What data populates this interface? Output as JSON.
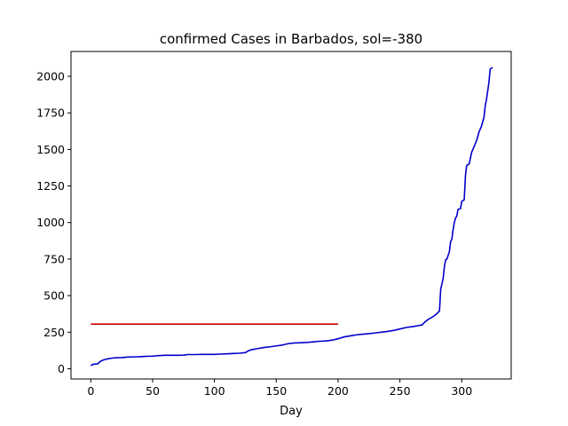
{
  "chart_data": {
    "type": "line",
    "title": "confirmed Cases in Barbados, sol=-380",
    "xlabel": "Day",
    "ylabel": "",
    "xlim": [
      -16,
      340
    ],
    "ylim": [
      -70,
      2170
    ],
    "x_ticks": [
      0,
      50,
      100,
      150,
      200,
      250,
      300
    ],
    "y_ticks": [
      0,
      250,
      500,
      750,
      1000,
      1250,
      1500,
      1750,
      2000
    ],
    "grid": false,
    "series": [
      {
        "color": "#0000cc",
        "points": [
          [
            0,
            22
          ],
          [
            2,
            30
          ],
          [
            4,
            33
          ],
          [
            6,
            34
          ],
          [
            7,
            46
          ],
          [
            9,
            56
          ],
          [
            11,
            62
          ],
          [
            13,
            66
          ],
          [
            15,
            70
          ],
          [
            17,
            72
          ],
          [
            20,
            75
          ],
          [
            25,
            76
          ],
          [
            30,
            80
          ],
          [
            35,
            81
          ],
          [
            40,
            82
          ],
          [
            45,
            85
          ],
          [
            50,
            86
          ],
          [
            55,
            90
          ],
          [
            60,
            92
          ],
          [
            65,
            92
          ],
          [
            70,
            92
          ],
          [
            75,
            93
          ],
          [
            78,
            97
          ],
          [
            85,
            97
          ],
          [
            90,
            98
          ],
          [
            95,
            98
          ],
          [
            100,
            98
          ],
          [
            105,
            100
          ],
          [
            110,
            102
          ],
          [
            115,
            104
          ],
          [
            120,
            106
          ],
          [
            125,
            110
          ],
          [
            128,
            125
          ],
          [
            130,
            130
          ],
          [
            135,
            138
          ],
          [
            140,
            145
          ],
          [
            145,
            150
          ],
          [
            150,
            156
          ],
          [
            155,
            162
          ],
          [
            160,
            172
          ],
          [
            165,
            176
          ],
          [
            170,
            178
          ],
          [
            175,
            180
          ],
          [
            180,
            184
          ],
          [
            185,
            188
          ],
          [
            190,
            190
          ],
          [
            195,
            195
          ],
          [
            200,
            205
          ],
          [
            205,
            218
          ],
          [
            210,
            225
          ],
          [
            215,
            232
          ],
          [
            220,
            236
          ],
          [
            225,
            240
          ],
          [
            230,
            245
          ],
          [
            235,
            250
          ],
          [
            240,
            255
          ],
          [
            245,
            262
          ],
          [
            250,
            272
          ],
          [
            255,
            282
          ],
          [
            260,
            288
          ],
          [
            265,
            295
          ],
          [
            268,
            300
          ],
          [
            270,
            318
          ],
          [
            273,
            338
          ],
          [
            276,
            352
          ],
          [
            279,
            370
          ],
          [
            282,
            395
          ],
          [
            283,
            545
          ],
          [
            284,
            580
          ],
          [
            285,
            620
          ],
          [
            286,
            700
          ],
          [
            287,
            745
          ],
          [
            288,
            750
          ],
          [
            290,
            800
          ],
          [
            291,
            870
          ],
          [
            292,
            885
          ],
          [
            293,
            950
          ],
          [
            294,
            1000
          ],
          [
            295,
            1030
          ],
          [
            296,
            1045
          ],
          [
            297,
            1090
          ],
          [
            299,
            1095
          ],
          [
            300,
            1145
          ],
          [
            302,
            1155
          ],
          [
            303,
            1320
          ],
          [
            304,
            1390
          ],
          [
            306,
            1400
          ],
          [
            308,
            1480
          ],
          [
            310,
            1520
          ],
          [
            312,
            1560
          ],
          [
            314,
            1620
          ],
          [
            316,
            1660
          ],
          [
            318,
            1720
          ],
          [
            319,
            1800
          ],
          [
            320,
            1840
          ],
          [
            321,
            1900
          ],
          [
            322,
            1960
          ],
          [
            323,
            2050
          ],
          [
            325,
            2060
          ]
        ]
      },
      {
        "color": "#cc0000",
        "points": [
          [
            0,
            305
          ],
          [
            200,
            305
          ]
        ]
      }
    ]
  }
}
